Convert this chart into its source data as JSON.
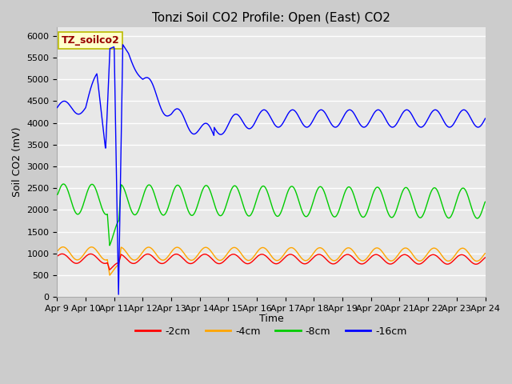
{
  "title": "Tonzi Soil CO2 Profile: Open (East) CO2",
  "ylabel": "Soil CO2 (mV)",
  "xlabel": "Time",
  "ylim": [
    0,
    6200
  ],
  "yticks": [
    0,
    500,
    1000,
    1500,
    2000,
    2500,
    3000,
    3500,
    4000,
    4500,
    5000,
    5500,
    6000
  ],
  "bg_color": "#cccccc",
  "plot_bg_color": "#e8e8e8",
  "grid_color": "#ffffff",
  "legend_label": "TZ_soilco2",
  "series_labels": [
    "-2cm",
    "-4cm",
    "-8cm",
    "-16cm"
  ],
  "series_colors": [
    "#ff0000",
    "#ffa500",
    "#00cc00",
    "#0000ff"
  ],
  "x_tick_labels": [
    "Apr 9",
    "Apr 10",
    "Apr 11",
    "Apr 12",
    "Apr 13",
    "Apr 14",
    "Apr 15",
    "Apr 16",
    "Apr 17",
    "Apr 18",
    "Apr 19",
    "Apr 20",
    "Apr 21",
    "Apr 22",
    "Apr 23",
    "Apr 24"
  ],
  "title_fontsize": 11,
  "axis_fontsize": 9,
  "tick_fontsize": 8,
  "linewidth": 1.0
}
